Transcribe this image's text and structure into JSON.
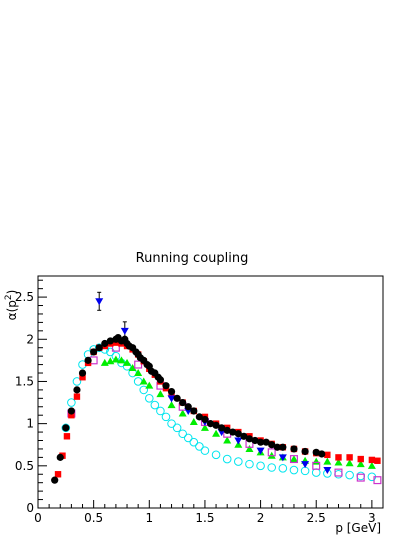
{
  "chart_data": {
    "type": "scatter",
    "title": "Running coupling",
    "xlabel": "p [GeV]",
    "ylabel_main": "α(p",
    "ylabel_sup": "2",
    "ylabel_end": ")",
    "xlim": [
      0,
      3.1
    ],
    "ylim": [
      0,
      2.75
    ],
    "x_ticks": [
      "0",
      "0.5",
      "1",
      "1.5",
      "2",
      "2.5",
      "3"
    ],
    "x_tick_values": [
      0,
      0.5,
      1,
      1.5,
      2,
      2.5,
      3
    ],
    "y_ticks": [
      "0",
      "0.5",
      "1",
      "1.5",
      "2",
      "2.5"
    ],
    "y_tick_values": [
      0,
      0.5,
      1,
      1.5,
      2,
      2.5
    ],
    "grid": false,
    "series": [
      {
        "marker": "circle-open",
        "color": "#00e5ee",
        "x": [
          0.25,
          0.3,
          0.35,
          0.4,
          0.45,
          0.5,
          0.55,
          0.6,
          0.65,
          0.7,
          0.75,
          0.8,
          0.85,
          0.9,
          0.95,
          1.0,
          1.05,
          1.1,
          1.15,
          1.2,
          1.25,
          1.3,
          1.35,
          1.4,
          1.45,
          1.5,
          1.6,
          1.7,
          1.8,
          1.9,
          2.0,
          2.1,
          2.2,
          2.3,
          2.4,
          2.5,
          2.6,
          2.7,
          2.8,
          2.9,
          3.0
        ],
        "y": [
          0.95,
          1.25,
          1.5,
          1.7,
          1.82,
          1.88,
          1.9,
          1.88,
          1.85,
          1.8,
          1.72,
          1.68,
          1.6,
          1.5,
          1.4,
          1.3,
          1.22,
          1.15,
          1.08,
          1.0,
          0.95,
          0.88,
          0.83,
          0.78,
          0.73,
          0.68,
          0.63,
          0.58,
          0.55,
          0.52,
          0.5,
          0.48,
          0.47,
          0.45,
          0.44,
          0.42,
          0.41,
          0.4,
          0.39,
          0.38,
          0.37
        ]
      },
      {
        "marker": "triangle-up",
        "color": "#00ee00",
        "x": [
          0.6,
          0.65,
          0.7,
          0.75,
          0.8,
          0.85,
          0.9,
          0.95,
          1.0,
          1.1,
          1.2,
          1.3,
          1.4,
          1.5,
          1.6,
          1.7,
          1.8,
          1.9,
          2.0,
          2.1,
          2.2,
          2.3,
          2.4,
          2.5,
          2.6,
          2.7,
          2.8,
          2.9,
          3.0
        ],
        "y": [
          1.72,
          1.74,
          1.76,
          1.75,
          1.72,
          1.66,
          1.6,
          1.5,
          1.45,
          1.35,
          1.22,
          1.12,
          1.02,
          0.95,
          0.88,
          0.8,
          0.75,
          0.7,
          0.66,
          0.62,
          0.6,
          0.58,
          0.56,
          0.55,
          0.55,
          0.54,
          0.53,
          0.52,
          0.5
        ]
      },
      {
        "marker": "square-open",
        "color": "#cc33cc",
        "x": [
          0.3,
          0.5,
          0.7,
          0.9,
          1.1,
          1.3,
          1.5,
          1.7,
          1.9,
          2.1,
          2.3,
          2.5,
          2.7,
          2.9,
          3.05
        ],
        "y": [
          1.12,
          1.75,
          1.9,
          1.7,
          1.45,
          1.2,
          1.02,
          0.88,
          0.76,
          0.66,
          0.58,
          0.5,
          0.42,
          0.36,
          0.33
        ]
      },
      {
        "marker": "square",
        "color": "#ff0000",
        "x": [
          0.18,
          0.22,
          0.26,
          0.3,
          0.35,
          0.4,
          0.45,
          0.5,
          0.55,
          0.6,
          0.65,
          0.7,
          0.75,
          0.8,
          0.85,
          0.9,
          0.95,
          1.0,
          1.05,
          1.1,
          1.15,
          1.2,
          1.3,
          1.4,
          1.5,
          1.6,
          1.7,
          1.8,
          1.9,
          2.0,
          2.1,
          2.2,
          2.3,
          2.4,
          2.5,
          2.6,
          2.7,
          2.8,
          2.9,
          3.0,
          3.05
        ],
        "y": [
          0.4,
          0.62,
          0.85,
          1.1,
          1.32,
          1.55,
          1.72,
          1.85,
          1.9,
          1.92,
          1.95,
          1.96,
          1.95,
          1.92,
          1.88,
          1.82,
          1.74,
          1.65,
          1.58,
          1.5,
          1.42,
          1.35,
          1.25,
          1.15,
          1.08,
          1.0,
          0.95,
          0.9,
          0.85,
          0.8,
          0.76,
          0.72,
          0.7,
          0.67,
          0.65,
          0.63,
          0.6,
          0.6,
          0.58,
          0.57,
          0.56
        ]
      },
      {
        "marker": "triangle-down",
        "color": "#0000ee",
        "x": [
          0.55,
          0.78,
          1.2,
          1.35,
          1.5,
          1.65,
          1.8,
          2.0,
          2.2,
          2.4,
          2.6
        ],
        "y": [
          2.45,
          2.1,
          1.3,
          1.15,
          1.02,
          0.9,
          0.8,
          0.68,
          0.6,
          0.52,
          0.45
        ]
      },
      {
        "marker": "circle",
        "color": "#000000",
        "x": [
          0.15,
          0.2,
          0.25,
          0.3,
          0.35,
          0.4,
          0.45,
          0.5,
          0.55,
          0.6,
          0.65,
          0.7,
          0.72,
          0.75,
          0.78,
          0.8,
          0.82,
          0.85,
          0.88,
          0.9,
          0.92,
          0.95,
          0.98,
          1.0,
          1.02,
          1.05,
          1.08,
          1.1,
          1.15,
          1.2,
          1.25,
          1.3,
          1.35,
          1.4,
          1.45,
          1.5,
          1.55,
          1.6,
          1.65,
          1.7,
          1.75,
          1.8,
          1.85,
          1.9,
          1.95,
          2.0,
          2.05,
          2.1,
          2.15,
          2.2,
          2.3,
          2.4,
          2.5,
          2.55
        ],
        "y": [
          0.33,
          0.6,
          0.95,
          1.15,
          1.4,
          1.6,
          1.75,
          1.85,
          1.9,
          1.95,
          1.98,
          2.0,
          2.02,
          1.98,
          2.0,
          1.95,
          1.92,
          1.9,
          1.85,
          1.82,
          1.78,
          1.75,
          1.7,
          1.68,
          1.62,
          1.6,
          1.55,
          1.52,
          1.45,
          1.38,
          1.3,
          1.25,
          1.2,
          1.15,
          1.08,
          1.05,
          1.0,
          0.98,
          0.95,
          0.92,
          0.9,
          0.88,
          0.85,
          0.82,
          0.8,
          0.78,
          0.78,
          0.75,
          0.72,
          0.72,
          0.7,
          0.67,
          0.66,
          0.64
        ]
      }
    ]
  }
}
